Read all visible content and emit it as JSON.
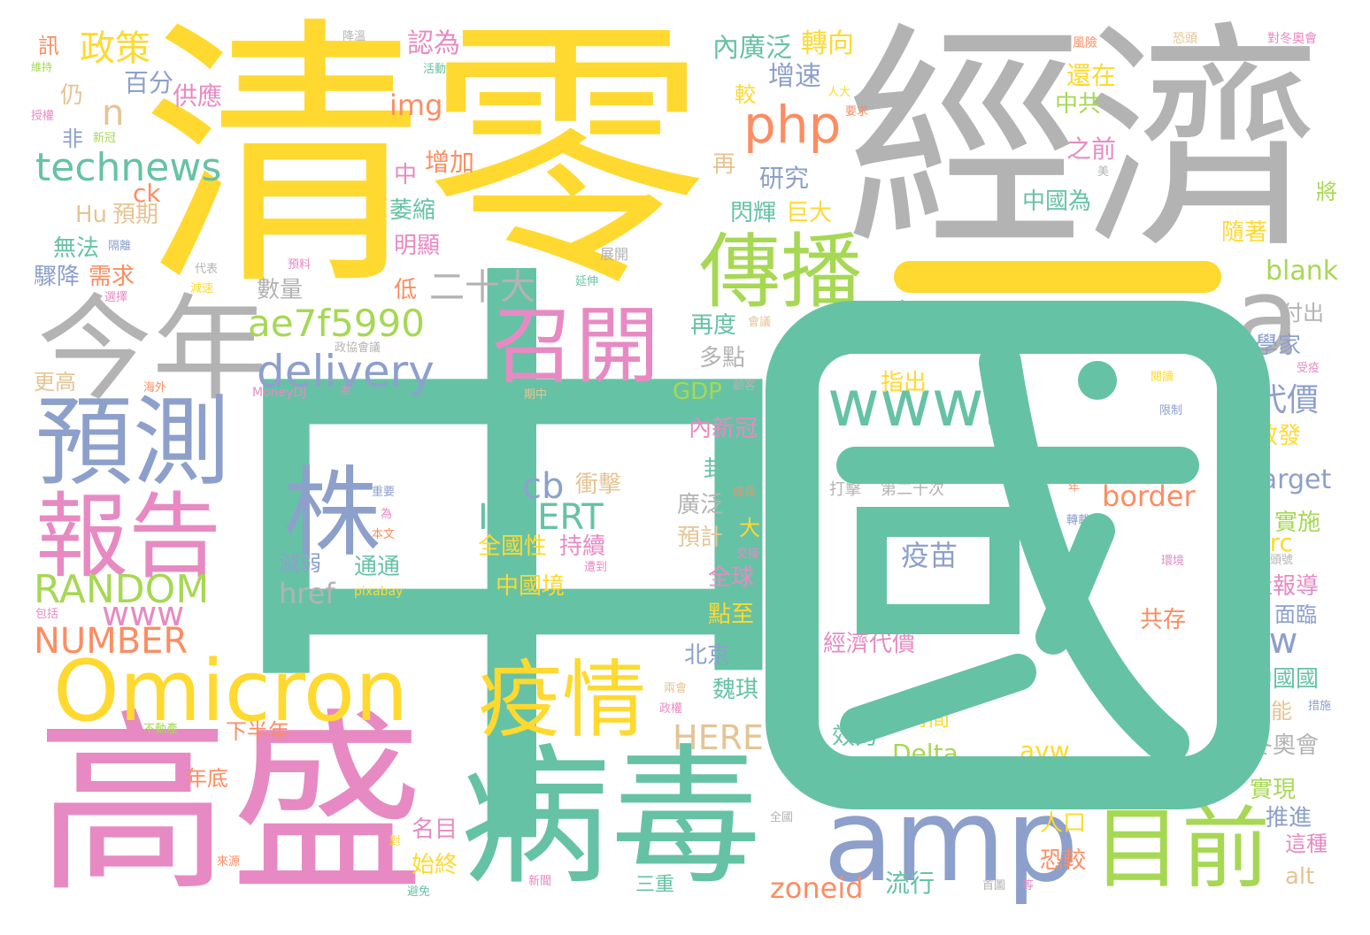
{
  "palette": {
    "teal": "#66c2a5",
    "orange": "#fc8d62",
    "blue": "#8da0cb",
    "pink": "#e78ac3",
    "green": "#a6d854",
    "yellow": "#ffd92f",
    "tan": "#e5c494",
    "grey": "#b3b3b3"
  },
  "words": [
    {
      "text": "中國",
      "color": "teal",
      "kind": "zhong"
    },
    {
      "text": "清零",
      "color": "yellow"
    },
    {
      "text": "經濟",
      "color": "grey"
    },
    {
      "text": "高盛",
      "color": "pink"
    },
    {
      "text": "病毒",
      "color": "teal"
    },
    {
      "text": "今年",
      "color": "grey"
    },
    {
      "text": "預測",
      "color": "blue"
    },
    {
      "text": "報告",
      "color": "pink"
    },
    {
      "text": "Omicron",
      "color": "yellow"
    },
    {
      "text": "傳播",
      "color": "green"
    },
    {
      "text": "召開",
      "color": "pink"
    },
    {
      "text": "疫情",
      "color": "yellow"
    },
    {
      "text": "amp",
      "color": "blue"
    },
    {
      "text": "目前",
      "color": "green"
    },
    {
      "text": "www5",
      "color": "teal"
    },
    {
      "text": "株",
      "color": "blue"
    },
    {
      "text": "a",
      "color": "grey"
    },
    {
      "text": "php",
      "color": "orange"
    },
    {
      "text": "technews",
      "color": "teal"
    },
    {
      "text": "delivery",
      "color": "blue"
    },
    {
      "text": "ae7f5990",
      "color": "green"
    },
    {
      "text": "RANDOM",
      "color": "green"
    },
    {
      "text": "NUMBER",
      "color": "orange"
    },
    {
      "text": "www",
      "color": "pink"
    },
    {
      "text": "INSERT",
      "color": "teal"
    },
    {
      "text": "cb",
      "color": "blue"
    },
    {
      "text": "HERE",
      "color": "tan"
    },
    {
      "text": "政策",
      "color": "yellow"
    },
    {
      "text": "二十大",
      "color": "grey"
    },
    {
      "text": "疫苗",
      "color": "blue"
    },
    {
      "text": "tw",
      "color": "blue"
    },
    {
      "text": "border",
      "color": "orange"
    },
    {
      "text": "target",
      "color": "blue"
    },
    {
      "text": "blank",
      "color": "green"
    },
    {
      "text": "Helen",
      "color": "teal"
    },
    {
      "text": "zoneid",
      "color": "orange"
    },
    {
      "text": "Delta",
      "color": "green"
    },
    {
      "text": "avw",
      "color": "yellow"
    },
    {
      "text": "href",
      "color": "grey"
    },
    {
      "text": "img",
      "color": "orange"
    },
    {
      "text": "n",
      "color": "tan"
    },
    {
      "text": "ck",
      "color": "orange"
    },
    {
      "text": "Hu",
      "color": "tan"
    },
    {
      "text": "GDP",
      "color": "green"
    },
    {
      "text": "src",
      "color": "yellow"
    },
    {
      "text": "alt",
      "color": "tan"
    },
    {
      "text": "MoneyDJ",
      "color": "pink"
    },
    {
      "text": "pixabay",
      "color": "yellow"
    },
    {
      "text": "百分",
      "color": "blue"
    },
    {
      "text": "供應",
      "color": "pink"
    },
    {
      "text": "認為",
      "color": "pink"
    },
    {
      "text": "內廣泛",
      "color": "teal"
    },
    {
      "text": "轉向",
      "color": "yellow"
    },
    {
      "text": "增速",
      "color": "blue"
    },
    {
      "text": "還在",
      "color": "yellow"
    },
    {
      "text": "中共",
      "color": "green"
    },
    {
      "text": "之前",
      "color": "pink"
    },
    {
      "text": "增加",
      "color": "orange"
    },
    {
      "text": "研究",
      "color": "blue"
    },
    {
      "text": "再",
      "color": "tan"
    },
    {
      "text": "中國為",
      "color": "teal"
    },
    {
      "text": "隨著",
      "color": "yellow"
    },
    {
      "text": "閃輝",
      "color": "teal"
    },
    {
      "text": "巨大",
      "color": "yellow"
    },
    {
      "text": "預期",
      "color": "tan"
    },
    {
      "text": "無法",
      "color": "teal"
    },
    {
      "text": "驟降",
      "color": "blue"
    },
    {
      "text": "需求",
      "color": "orange"
    },
    {
      "text": "明顯",
      "color": "pink"
    },
    {
      "text": "萎縮",
      "color": "teal"
    },
    {
      "text": "數量",
      "color": "grey"
    },
    {
      "text": "低",
      "color": "orange"
    },
    {
      "text": "至今",
      "color": "teal"
    },
    {
      "text": "至少",
      "color": "grey"
    },
    {
      "text": "還要",
      "color": "pink"
    },
    {
      "text": "付出",
      "color": "grey"
    },
    {
      "text": "學家",
      "color": "blue"
    },
    {
      "text": "再度",
      "color": "teal"
    },
    {
      "text": "多點",
      "color": "grey"
    },
    {
      "text": "指出",
      "color": "yellow"
    },
    {
      "text": "代價",
      "color": "blue"
    },
    {
      "text": "散發",
      "color": "yellow"
    },
    {
      "text": "內新冠",
      "color": "pink"
    },
    {
      "text": "封鎖",
      "color": "teal"
    },
    {
      "text": "廣泛",
      "color": "grey"
    },
    {
      "text": "預計",
      "color": "tan"
    },
    {
      "text": "實施",
      "color": "green"
    },
    {
      "text": "全國性",
      "color": "yellow"
    },
    {
      "text": "持續",
      "color": "pink"
    },
    {
      "text": "衝擊",
      "color": "tan"
    },
    {
      "text": "中國境",
      "color": "yellow"
    },
    {
      "text": "減弱",
      "color": "blue"
    },
    {
      "text": "通通",
      "color": "teal"
    },
    {
      "text": "全球",
      "color": "pink"
    },
    {
      "text": "點至",
      "color": "yellow"
    },
    {
      "text": "社報導",
      "color": "pink"
    },
    {
      "text": "面臨",
      "color": "blue"
    },
    {
      "text": "共存",
      "color": "orange"
    },
    {
      "text": "北京",
      "color": "blue"
    },
    {
      "text": "經濟代價",
      "color": "pink"
    },
    {
      "text": "中國國",
      "color": "teal"
    },
    {
      "text": "可能",
      "color": "tan"
    },
    {
      "text": "魏琪",
      "color": "teal"
    },
    {
      "text": "時間",
      "color": "yellow"
    },
    {
      "text": "效力",
      "color": "teal"
    },
    {
      "text": "冬奧會",
      "color": "grey"
    },
    {
      "text": "下半年",
      "color": "orange"
    },
    {
      "text": "年底",
      "color": "orange"
    },
    {
      "text": "實現",
      "color": "green"
    },
    {
      "text": "推進",
      "color": "blue"
    },
    {
      "text": "這種",
      "color": "pink"
    },
    {
      "text": "人口",
      "color": "yellow"
    },
    {
      "text": "恐較",
      "color": "orange"
    },
    {
      "text": "名目",
      "color": "pink"
    },
    {
      "text": "始終",
      "color": "yellow"
    },
    {
      "text": "流行",
      "color": "teal"
    },
    {
      "text": "三重",
      "color": "teal"
    },
    {
      "text": "更高",
      "color": "tan"
    },
    {
      "text": "仍",
      "color": "tan"
    },
    {
      "text": "非",
      "color": "blue"
    },
    {
      "text": "訊",
      "color": "orange"
    },
    {
      "text": "中",
      "color": "pink"
    },
    {
      "text": "日",
      "color": "teal"
    },
    {
      "text": "大",
      "color": "yellow"
    },
    {
      "text": "較",
      "color": "yellow"
    },
    {
      "text": "將",
      "color": "green"
    },
    {
      "text": "維持",
      "color": "green"
    },
    {
      "text": "授權",
      "color": "pink"
    },
    {
      "text": "新冠",
      "color": "green"
    },
    {
      "text": "隔離",
      "color": "blue"
    },
    {
      "text": "代表",
      "color": "grey"
    },
    {
      "text": "減速",
      "color": "yellow"
    },
    {
      "text": "預料",
      "color": "pink"
    },
    {
      "text": "延伸",
      "color": "teal"
    },
    {
      "text": "選擇",
      "color": "pink"
    },
    {
      "text": "展開",
      "color": "grey"
    },
    {
      "text": "降溫",
      "color": "grey"
    },
    {
      "text": "活動",
      "color": "teal"
    },
    {
      "text": "風險",
      "color": "orange"
    },
    {
      "text": "恐頭",
      "color": "tan"
    },
    {
      "text": "對冬奧會",
      "color": "pink"
    },
    {
      "text": "人大",
      "color": "yellow"
    },
    {
      "text": "要求",
      "color": "orange"
    },
    {
      "text": "美",
      "color": "grey"
    },
    {
      "text": "會議",
      "color": "tan"
    },
    {
      "text": "大會",
      "color": "grey"
    },
    {
      "text": "政協會議",
      "color": "grey"
    },
    {
      "text": "海外",
      "color": "orange"
    },
    {
      "text": "率",
      "color": "pink"
    },
    {
      "text": "期中",
      "color": "tan"
    },
    {
      "text": "顧客",
      "color": "grey"
    },
    {
      "text": "閱讀",
      "color": "yellow"
    },
    {
      "text": "限制",
      "color": "blue"
    },
    {
      "text": "受疫",
      "color": "pink"
    },
    {
      "text": "重要",
      "color": "blue"
    },
    {
      "text": "為",
      "color": "pink"
    },
    {
      "text": "本文",
      "color": "orange"
    },
    {
      "text": "成長",
      "color": "orange"
    },
    {
      "text": "交接",
      "color": "pink"
    },
    {
      "text": "遭到",
      "color": "pink"
    },
    {
      "text": "打擊",
      "color": "grey"
    },
    {
      "text": "第二十次",
      "color": "grey"
    },
    {
      "text": "年",
      "color": "orange"
    },
    {
      "text": "轉載",
      "color": "blue"
    },
    {
      "text": "環境",
      "color": "pink"
    },
    {
      "text": "年頭號",
      "color": "grey"
    },
    {
      "text": "包括",
      "color": "pink"
    },
    {
      "text": "兩會",
      "color": "tan"
    },
    {
      "text": "政權",
      "color": "pink"
    },
    {
      "text": "措施",
      "color": "blue"
    },
    {
      "text": "不動產",
      "color": "green"
    },
    {
      "text": "全國",
      "color": "grey"
    },
    {
      "text": "對",
      "color": "yellow"
    },
    {
      "text": "來源",
      "color": "orange"
    },
    {
      "text": "避免",
      "color": "teal"
    },
    {
      "text": "新聞",
      "color": "pink"
    },
    {
      "text": "首圖",
      "color": "grey"
    },
    {
      "text": "等",
      "color": "pink"
    }
  ]
}
